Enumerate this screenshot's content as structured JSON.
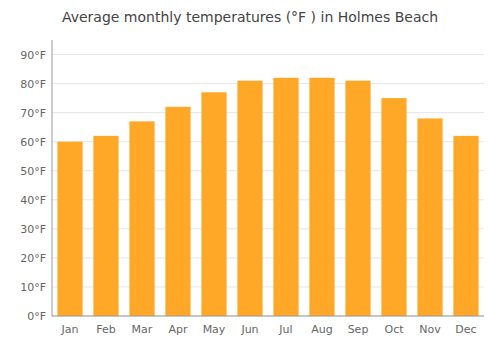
{
  "chart_data": {
    "type": "bar",
    "title": "Average monthly temperatures (°F ) in Holmes Beach",
    "categories": [
      "Jan",
      "Feb",
      "Mar",
      "Apr",
      "May",
      "Jun",
      "Jul",
      "Aug",
      "Sep",
      "Oct",
      "Nov",
      "Dec"
    ],
    "values": [
      60,
      62,
      67,
      72,
      77,
      81,
      82,
      82,
      81,
      75,
      68,
      62
    ],
    "color": "#FFA726",
    "ylim": [
      0,
      95
    ],
    "yticks": [
      {
        "value": 0,
        "label": "0°F"
      },
      {
        "value": 10,
        "label": "10°F"
      },
      {
        "value": 20,
        "label": "20°F"
      },
      {
        "value": 30,
        "label": "30°F"
      },
      {
        "value": 40,
        "label": "40°F"
      },
      {
        "value": 50,
        "label": "50°F"
      },
      {
        "value": 60,
        "label": "60°F"
      },
      {
        "value": 70,
        "label": "70°F"
      },
      {
        "value": 80,
        "label": "80°F"
      },
      {
        "value": 90,
        "label": "90°F"
      }
    ],
    "grid": true
  }
}
